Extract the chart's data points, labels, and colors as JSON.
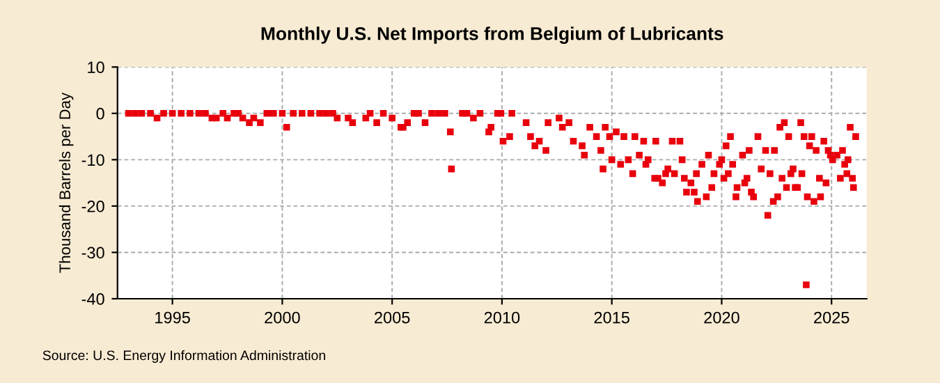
{
  "chart_data": {
    "type": "scatter",
    "title": "Monthly U.S. Net Imports from Belgium of Lubricants",
    "ylabel": "Thousand Barrels per Day",
    "annotations": [
      "Source: U.S. Energy Information Administration"
    ],
    "xlim": [
      1992.5,
      2026.6
    ],
    "xticks": [
      1995,
      2000,
      2005,
      2010,
      2015,
      2020,
      2025
    ],
    "ylim": [
      -40,
      10
    ],
    "yticks": [
      -40,
      -30,
      -20,
      -10,
      0,
      10
    ],
    "grid": true,
    "marker": "square",
    "series": [
      {
        "color": "#e8000c",
        "x": [
          1993.0,
          1993.3,
          1993.6,
          1994.0,
          1994.3,
          1994.6,
          1995.0,
          1995.4,
          1995.8,
          1996.2,
          1996.5,
          1996.8,
          1997.0,
          1997.3,
          1997.5,
          1997.8,
          1998.0,
          1998.2,
          1998.5,
          1998.7,
          1999.0,
          1999.3,
          1999.6,
          2000.0,
          2000.2,
          2000.5,
          2000.9,
          2001.3,
          2001.7,
          2002.0,
          2002.3,
          2002.5,
          2003.0,
          2003.2,
          2003.8,
          2004.0,
          2004.3,
          2004.6,
          2005.0,
          2005.4,
          2005.5,
          2005.7,
          2006.0,
          2006.2,
          2006.5,
          2006.8,
          2007.1,
          2007.4,
          2007.65,
          2007.7,
          2008.2,
          2008.4,
          2008.7,
          2009.0,
          2009.4,
          2009.5,
          2009.8,
          2009.95,
          2010.05,
          2010.35,
          2010.45,
          2011.1,
          2011.3,
          2011.5,
          2011.7,
          2012.0,
          2012.1,
          2012.6,
          2012.75,
          2013.05,
          2013.25,
          2013.65,
          2013.75,
          2014.0,
          2014.3,
          2014.5,
          2014.6,
          2014.7,
          2014.9,
          2015.0,
          2015.2,
          2015.4,
          2015.55,
          2015.75,
          2015.95,
          2016.05,
          2016.25,
          2016.45,
          2016.55,
          2016.65,
          2016.95,
          2017.0,
          2017.1,
          2017.3,
          2017.45,
          2017.55,
          2017.75,
          2017.85,
          2018.1,
          2018.2,
          2018.3,
          2018.4,
          2018.6,
          2018.75,
          2018.85,
          2018.9,
          2019.1,
          2019.3,
          2019.4,
          2019.55,
          2019.65,
          2019.9,
          2020.0,
          2020.1,
          2020.2,
          2020.3,
          2020.4,
          2020.5,
          2020.65,
          2020.7,
          2020.95,
          2021.05,
          2021.15,
          2021.25,
          2021.35,
          2021.45,
          2021.65,
          2021.8,
          2022.0,
          2022.1,
          2022.2,
          2022.35,
          2022.4,
          2022.55,
          2022.65,
          2022.75,
          2022.85,
          2022.95,
          2023.05,
          2023.15,
          2023.25,
          2023.35,
          2023.45,
          2023.6,
          2023.65,
          2023.75,
          2023.85,
          2023.9,
          2024.0,
          2024.1,
          2024.2,
          2024.3,
          2024.45,
          2024.5,
          2024.65,
          2024.75,
          2024.85,
          2024.95,
          2025.05,
          2025.25,
          2025.4,
          2025.5,
          2025.6,
          2025.7,
          2025.75,
          2025.85,
          2025.95,
          2026.0,
          2026.1
        ],
        "values": [
          0,
          0,
          0,
          0,
          -1,
          0,
          0,
          0,
          0,
          0,
          0,
          -1,
          -1,
          0,
          -1,
          0,
          0,
          -1,
          -2,
          -1,
          -2,
          0,
          0,
          0,
          -3,
          0,
          0,
          0,
          0,
          0,
          0,
          -1,
          -1,
          -2,
          -1,
          0,
          -2,
          0,
          -1,
          -3,
          -3,
          -2,
          0,
          0,
          -2,
          0,
          0,
          0,
          -4,
          -12,
          0,
          0,
          -1,
          0,
          -4,
          -3,
          0,
          0,
          -6,
          -5,
          0,
          -2,
          -5,
          -7,
          -6,
          -8,
          -2,
          -1,
          -3,
          -2,
          -6,
          -7,
          -9,
          -3,
          -5,
          -8,
          -12,
          -3,
          -5,
          -10,
          -4,
          -11,
          -5,
          -10,
          -13,
          -5,
          -9,
          -6,
          -11,
          -10,
          -14,
          -6,
          -14,
          -15,
          -13,
          -12,
          -6,
          -13,
          -6,
          -10,
          -14,
          -17,
          -15,
          -17,
          -13,
          -19,
          -11,
          -18,
          -9,
          -16,
          -13,
          -11,
          -10,
          -14,
          -7,
          -13,
          -5,
          -11,
          -18,
          -16,
          -9,
          -15,
          -14,
          -8,
          -17,
          -18,
          -5,
          -12,
          -8,
          -22,
          -13,
          -19,
          -8,
          -18,
          -3,
          -14,
          -2,
          -16,
          -5,
          -13,
          -12,
          -16,
          -16,
          -2,
          -13,
          -5,
          -37,
          -18,
          -7,
          -5,
          -19,
          -8,
          -14,
          -18,
          -6,
          -15,
          -8,
          -9,
          -10,
          -9,
          -14,
          -8,
          -11,
          -13,
          -10,
          -3,
          -14,
          -16,
          -5
        ]
      }
    ]
  }
}
